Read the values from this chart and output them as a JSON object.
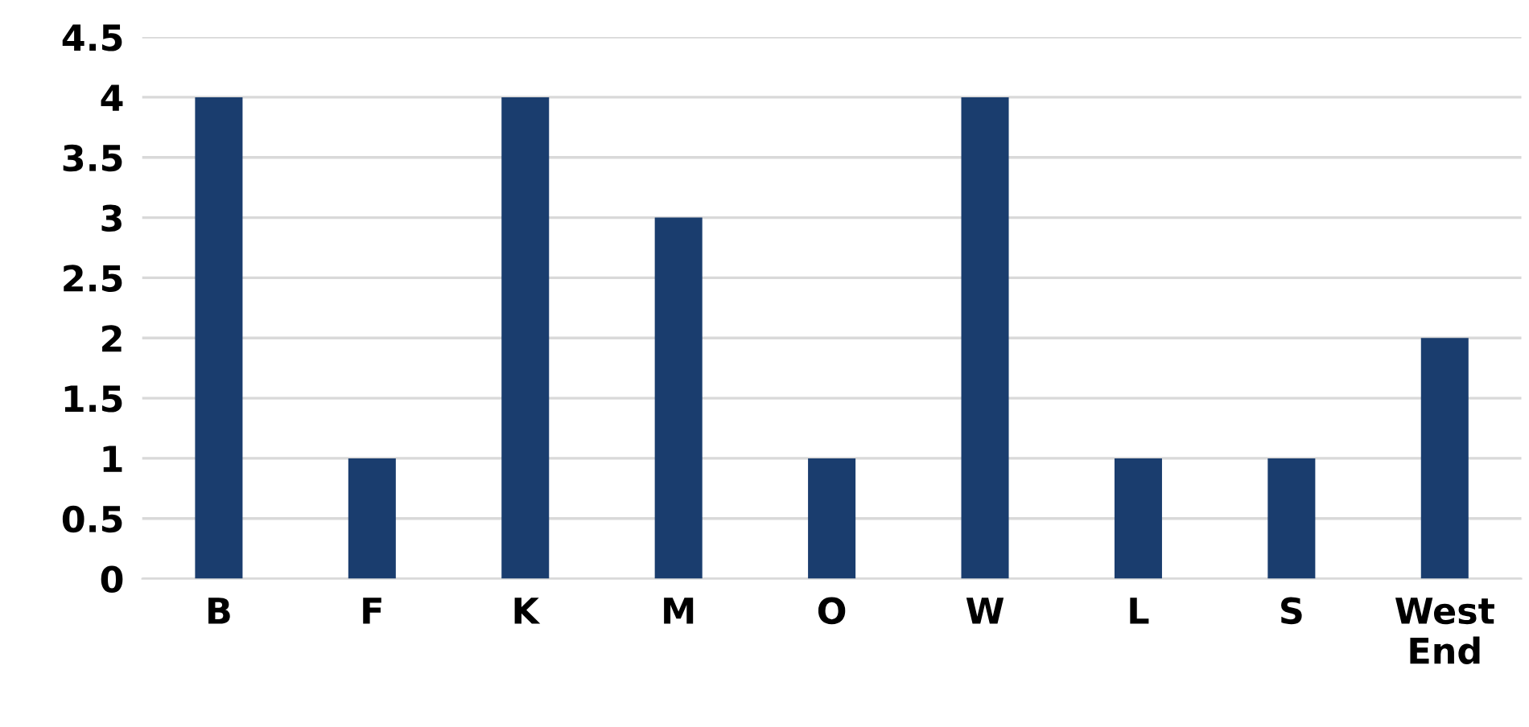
{
  "chart_data": {
    "type": "bar",
    "categories": [
      "B",
      "F",
      "K",
      "M",
      "O",
      "W",
      "L",
      "S",
      "West End"
    ],
    "values": [
      4,
      1,
      4,
      3,
      1,
      4,
      1,
      1,
      2
    ],
    "color": "#1a3d6e",
    "ylim": [
      0,
      4.5
    ],
    "yticks": [
      0,
      0.5,
      1,
      1.5,
      2,
      2.5,
      3,
      3.5,
      4,
      4.5
    ],
    "grid": "y"
  }
}
